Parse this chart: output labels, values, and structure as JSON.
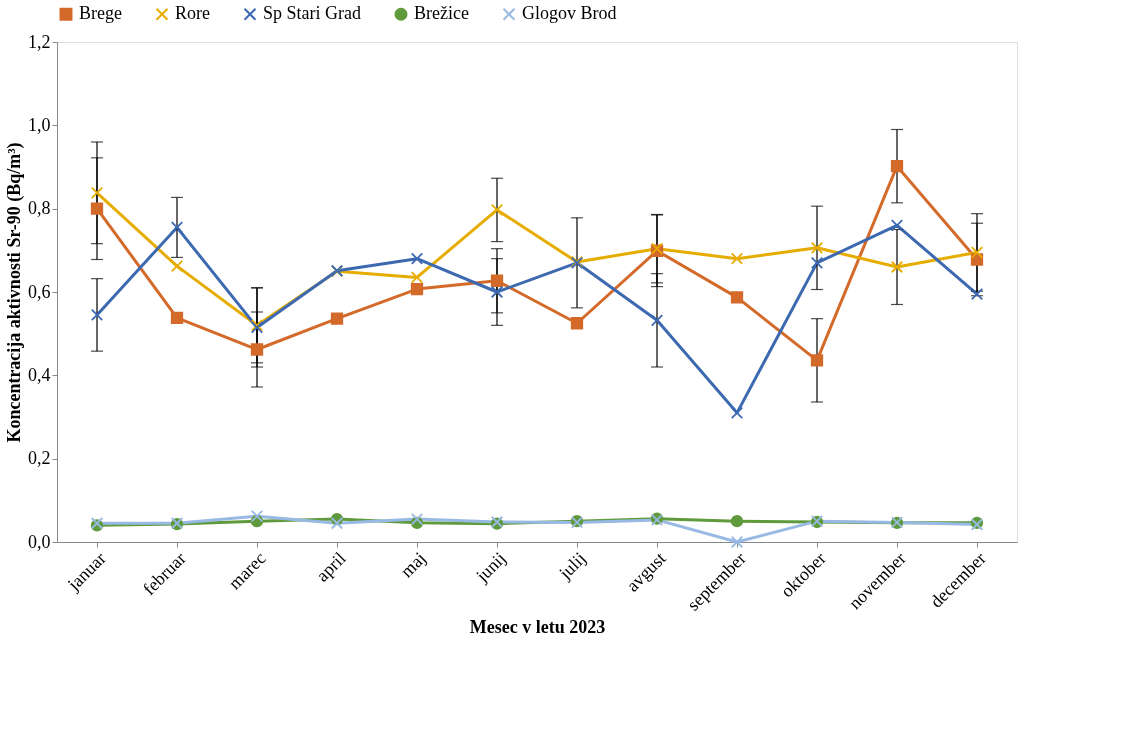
{
  "chart_data": {
    "type": "line",
    "xlabel": "Mesec v letu 2023",
    "ylabel": "Koncentracija aktivnosti Sr-90 (Bq/m³)",
    "categories": [
      "januar",
      "februar",
      "marec",
      "april",
      "maj",
      "junij",
      "julij",
      "avgust",
      "september",
      "oktober",
      "november",
      "december"
    ],
    "ylim": [
      0,
      1.2
    ],
    "yticks": [
      {
        "value": 0,
        "label": "0,0"
      },
      {
        "value": 0.2,
        "label": "0,2"
      },
      {
        "value": 0.4,
        "label": "0,4"
      },
      {
        "value": 0.6,
        "label": "0,6"
      },
      {
        "value": 0.8,
        "label": "0,8"
      },
      {
        "value": 1.0,
        "label": "1,0"
      },
      {
        "value": 1.2,
        "label": "1,2"
      }
    ],
    "grid": false,
    "legend": "top",
    "line_style": "solid",
    "series": [
      {
        "name": "Brege",
        "color": "#d46a2a",
        "marker": "square",
        "values": [
          0.8,
          0.538,
          0.462,
          0.536,
          0.607,
          0.627,
          0.525,
          0.699,
          0.587,
          0.436,
          0.902,
          0.678
        ],
        "errors": [
          0.122,
          null,
          0.09,
          null,
          null,
          0.077,
          null,
          0.086,
          null,
          0.1,
          0.088,
          0.087
        ]
      },
      {
        "name": "Rore",
        "color": "#e6ac00",
        "marker": "cross",
        "values": [
          0.838,
          0.662,
          0.52,
          0.65,
          0.635,
          0.797,
          0.672,
          0.704,
          0.68,
          0.706,
          0.66,
          0.695
        ],
        "errors": [
          0.122,
          null,
          0.09,
          null,
          null,
          0.076,
          null,
          0.082,
          null,
          0.1,
          0.09,
          0.093
        ]
      },
      {
        "name": "Sp Stari Grad",
        "color": "#3c69b0",
        "marker": "cross",
        "values": [
          0.545,
          0.755,
          0.515,
          0.651,
          0.68,
          0.6,
          0.67,
          0.532,
          0.31,
          0.67,
          0.76,
          0.595
        ],
        "errors": [
          0.087,
          0.072,
          0.095,
          null,
          null,
          0.08,
          0.108,
          0.112,
          null,
          null,
          null,
          null
        ]
      },
      {
        "name": "Brežice",
        "color": "#5f9a3c",
        "marker": "circle",
        "values": [
          0.04,
          0.043,
          0.05,
          0.055,
          0.046,
          0.044,
          0.05,
          0.056,
          0.05,
          0.048,
          0.046,
          0.046
        ]
      },
      {
        "name": "Glogov Brod",
        "color": "#98b9e3",
        "marker": "cross",
        "values": [
          0.045,
          0.045,
          0.062,
          0.045,
          0.055,
          0.048,
          0.047,
          0.053,
          0.0,
          0.05,
          0.047,
          0.042
        ]
      }
    ]
  }
}
